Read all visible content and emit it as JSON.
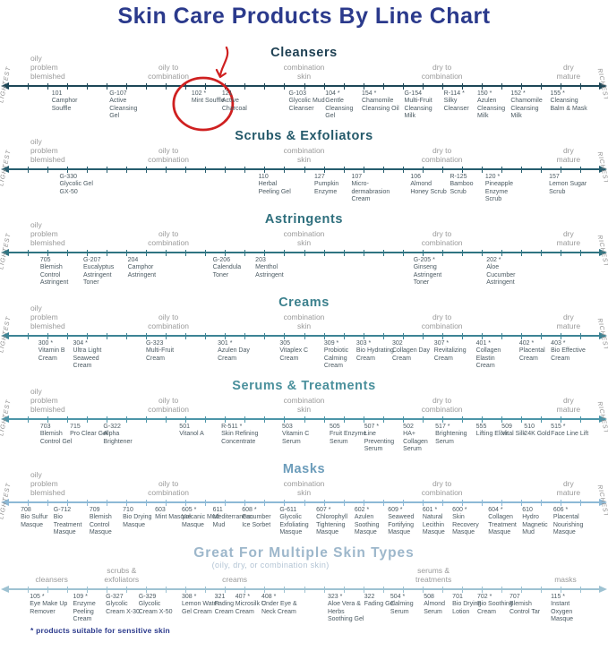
{
  "title": "Skin Care Products By Line Chart",
  "footer_note": "* products suitable for sensitive skin",
  "colors": {
    "title": "#2b3a8c",
    "footer": "#2b3a8c",
    "product_text": "#4b5a62",
    "zone_label_text": "#9a9a9a",
    "side_label_text": "#8e8e8e",
    "subtitle_text": "#b3c4d4",
    "annotation": "#cf2020"
  },
  "side_labels": {
    "left": "LIGHTEST",
    "right": "RICHEST"
  },
  "zone_label_sets": {
    "skin": [
      {
        "text": "oily\nproblem\nblemished",
        "x": 5,
        "align": "left"
      },
      {
        "text": "oily to\ncombination",
        "x": 27.7,
        "align": "center"
      },
      {
        "text": "combination\nskin",
        "x": 50,
        "align": "center"
      },
      {
        "text": "dry to\ncombination",
        "x": 72.7,
        "align": "center"
      },
      {
        "text": "dry\nmature",
        "x": 93.5,
        "align": "center"
      }
    ],
    "categories": [
      {
        "text": "cleansers",
        "x": 8.5,
        "align": "center"
      },
      {
        "text": "scrubs &\nexfoliators",
        "x": 20,
        "align": "center"
      },
      {
        "text": "creams",
        "x": 38.6,
        "align": "center"
      },
      {
        "text": "serums &\ntreatments",
        "x": 71.3,
        "align": "center"
      },
      {
        "text": "masks",
        "x": 93,
        "align": "center"
      }
    ]
  },
  "chart_data": {
    "type": "scatter",
    "x_axis": {
      "label_left": "LIGHTEST",
      "label_right": "RICHEST",
      "range": [
        0,
        100
      ],
      "description": "position along each product line from lightest to richest; zones: oily problem blemished / oily to combination / combination skin / dry to combination / dry mature"
    },
    "legend_note": "* products suitable for sensitive skin",
    "series": [
      {
        "name": "Cleansers",
        "zones": "skin",
        "header_color": "#1d3f52",
        "axis_color": "#1d4757",
        "points": [
          {
            "x": 8.5,
            "code": "101",
            "name": "Camphor Souffle"
          },
          {
            "x": 18,
            "code": "G-107",
            "name": "Active Cleansing Gel"
          },
          {
            "x": 31.5,
            "code": "102 *",
            "name": "Mint Souffle",
            "highlighted": true
          },
          {
            "x": 36.5,
            "code": "121",
            "name": "Active Charcoal"
          },
          {
            "x": 47.5,
            "code": "G-103",
            "name": "Glycolic Mud Cleanser"
          },
          {
            "x": 53.5,
            "code": "104 *",
            "name": "Gentle Cleansing Gel"
          },
          {
            "x": 59.5,
            "code": "154 *",
            "name": "Chamomile Cleansing Oil"
          },
          {
            "x": 66.5,
            "code": "G-154",
            "name": "Multi-Fruit Cleansing Milk"
          },
          {
            "x": 73,
            "code": "R-114 *",
            "name": "Silky Cleanser"
          },
          {
            "x": 78.5,
            "code": "150 *",
            "name": "Azulen Cleansing Milk"
          },
          {
            "x": 84,
            "code": "152 *",
            "name": "Chamomile Cleansing Milk"
          },
          {
            "x": 90.5,
            "code": "155 *",
            "name": "Cleansing Balm & Mask"
          }
        ]
      },
      {
        "name": "Scrubs & Exfoliators",
        "zones": "skin",
        "header_color": "#24596a",
        "axis_color": "#265d6e",
        "points": [
          {
            "x": 9.8,
            "code": "G-330",
            "name": "Glycolic Gel GX-50"
          },
          {
            "x": 42.5,
            "code": "110",
            "name": "Herbal Peeling Gel"
          },
          {
            "x": 51.7,
            "code": "127",
            "name": "Pumpkin Enzyme"
          },
          {
            "x": 57.8,
            "code": "107",
            "name": "Micro-dermabrasion Cream"
          },
          {
            "x": 67.5,
            "code": "106",
            "name": "Almond Honey Scrub"
          },
          {
            "x": 74,
            "code": "R-125",
            "name": "Bamboo Scrub"
          },
          {
            "x": 79.8,
            "code": "120 *",
            "name": "Pineapple Enzyme Scrub"
          },
          {
            "x": 90.3,
            "code": "157",
            "name": "Lemon Sugar Scrub"
          }
        ]
      },
      {
        "name": "Astringents",
        "zones": "skin",
        "header_color": "#2e6f7d",
        "axis_color": "#2f7482",
        "points": [
          {
            "x": 6.6,
            "code": "705",
            "name": "Blemish Control Astringent"
          },
          {
            "x": 13.7,
            "code": "G-207",
            "name": "Eucalyptus Astringent Toner"
          },
          {
            "x": 21,
            "code": "204",
            "name": "Camphor Astringent"
          },
          {
            "x": 35,
            "code": "G-206",
            "name": "Calendula Toner"
          },
          {
            "x": 42,
            "code": "203",
            "name": "Menthol Astringent"
          },
          {
            "x": 68,
            "code": "G-205 *",
            "name": "Ginseng Astringent Toner"
          },
          {
            "x": 80,
            "code": "202 *",
            "name": "Aloe Cucumber Astringent"
          }
        ]
      },
      {
        "name": "Creams",
        "zones": "skin",
        "header_color": "#3b808d",
        "axis_color": "#3d8495",
        "points": [
          {
            "x": 6.3,
            "code": "300 *",
            "name": "Vitamin B Cream"
          },
          {
            "x": 12,
            "code": "304 *",
            "name": "Ultra Light Seaweed Cream"
          },
          {
            "x": 24,
            "code": "G-323",
            "name": "Multi-Fruit Cream"
          },
          {
            "x": 35.8,
            "code": "301 *",
            "name": "Azulen Day Cream"
          },
          {
            "x": 46,
            "code": "305",
            "name": "Vitaplex C Cream"
          },
          {
            "x": 53.3,
            "code": "309 *",
            "name": "Probiotic Calming Cream"
          },
          {
            "x": 58.6,
            "code": "303 *",
            "name": "Bio Hydrating Cream"
          },
          {
            "x": 64.5,
            "code": "302",
            "name": "Collagen Day Cream"
          },
          {
            "x": 71.4,
            "code": "307 *",
            "name": "Revitalizing Cream"
          },
          {
            "x": 78.3,
            "code": "401 *",
            "name": "Collagen Elastin Cream"
          },
          {
            "x": 85.4,
            "code": "402 *",
            "name": "Placental Cream"
          },
          {
            "x": 90.6,
            "code": "403 *",
            "name": "Bio Effective Cream"
          }
        ]
      },
      {
        "name": "Serums & Treatments",
        "zones": "skin",
        "header_color": "#4a909c",
        "axis_color": "#4c95a8",
        "points": [
          {
            "x": 6.6,
            "code": "703",
            "name": "Blemish Control Gel"
          },
          {
            "x": 11.5,
            "code": "715",
            "name": "Pro Clear Gel"
          },
          {
            "x": 17,
            "code": "G-322",
            "name": "Alpha Brightener"
          },
          {
            "x": 29.5,
            "code": "501",
            "name": "Vitanol A"
          },
          {
            "x": 36.4,
            "code": "R-511 *",
            "name": "Skin Refining Concentrate"
          },
          {
            "x": 46.4,
            "code": "503",
            "name": "Vitamin C Serum"
          },
          {
            "x": 54.2,
            "code": "505",
            "name": "Fruit Enzyme Serum"
          },
          {
            "x": 59.9,
            "code": "507 *",
            "name": "Line Preventing Serum"
          },
          {
            "x": 66.3,
            "code": "502",
            "name": "HA+ Collagen Serum"
          },
          {
            "x": 71.6,
            "code": "517 *",
            "name": "Brightening Serum"
          },
          {
            "x": 78.3,
            "code": "555",
            "name": "Lifting Elixir"
          },
          {
            "x": 82.5,
            "code": "509",
            "name": "Vital Silk"
          },
          {
            "x": 86.2,
            "code": "510",
            "name": "24K Gold"
          },
          {
            "x": 90.6,
            "code": "515 *",
            "name": "Face Line Lift"
          }
        ]
      },
      {
        "name": "Masks",
        "zones": "skin",
        "header_color": "#6b9cba",
        "axis_color": "#8db9d6",
        "points": [
          {
            "x": 3.4,
            "code": "708",
            "name": "Bio Sulfur Masque"
          },
          {
            "x": 8.8,
            "code": "G-712",
            "name": "Bio Treatment Masque"
          },
          {
            "x": 14.7,
            "code": "709",
            "name": "Blemish Control Masque"
          },
          {
            "x": 20.2,
            "code": "710",
            "name": "Bio Drying Masque"
          },
          {
            "x": 25.5,
            "code": "603",
            "name": "Mint Masque"
          },
          {
            "x": 29.9,
            "code": "605 *",
            "name": "Volcanic Mud Masque"
          },
          {
            "x": 35,
            "code": "611",
            "name": "Mediterranean Mud"
          },
          {
            "x": 39.8,
            "code": "608 *",
            "name": "Cucumber Ice Sorbet"
          },
          {
            "x": 46,
            "code": "G-611",
            "name": "Glycolic Exfoliating Masque"
          },
          {
            "x": 52,
            "code": "607 *",
            "name": "Chlorophyll Tightening Masque"
          },
          {
            "x": 58.3,
            "code": "602 *",
            "name": "Azulen Soothing Masque"
          },
          {
            "x": 63.8,
            "code": "609 *",
            "name": "Seaweed Fortifying Masque"
          },
          {
            "x": 69.5,
            "code": "601 *",
            "name": "Natural Lecithin Masque"
          },
          {
            "x": 74.4,
            "code": "600 *",
            "name": "Skin Recovery Masque"
          },
          {
            "x": 80.3,
            "code": "604 *",
            "name": "Collagen Treatment Masque"
          },
          {
            "x": 85.9,
            "code": "610",
            "name": "Hydro Magnetic Mud"
          },
          {
            "x": 91,
            "code": "606 *",
            "name": "Placental Nourishing Masque"
          }
        ]
      },
      {
        "name": "Great For Multiple Skin Types",
        "subtitle": "(oily, dry, or combination skin)",
        "zones": "categories",
        "side_labels": false,
        "header_color": "#9db7cb",
        "axis_color": "#9ec2d2",
        "points": [
          {
            "x": 4.9,
            "code": "105 *",
            "name": "Eye Make Up Remover"
          },
          {
            "x": 12,
            "code": "109 *",
            "name": "Enzyme Peeling Cream"
          },
          {
            "x": 17.4,
            "code": "G-327",
            "name": "Glycolic Cream X-30"
          },
          {
            "x": 22.8,
            "code": "G-329",
            "name": "Glycolic Cream X-50"
          },
          {
            "x": 29.9,
            "code": "308 *",
            "name": "Lemon Water Gel Cream"
          },
          {
            "x": 35.3,
            "code": "321",
            "name": "Fading Cream"
          },
          {
            "x": 38.7,
            "code": "407 *",
            "name": "Microsilk C Cream"
          },
          {
            "x": 43,
            "code": "408 *",
            "name": "Under Eye & Neck Cream"
          },
          {
            "x": 53.9,
            "code": "323 *",
            "name": "Aloe Vera & Herbs Soothing Gel"
          },
          {
            "x": 59.9,
            "code": "322",
            "name": "Fading Gel"
          },
          {
            "x": 64.2,
            "code": "504 *",
            "name": "Calming Serum"
          },
          {
            "x": 69.7,
            "code": "508",
            "name": "Almond Serum"
          },
          {
            "x": 74.4,
            "code": "701",
            "name": "Bio Drying Lotion"
          },
          {
            "x": 78.5,
            "code": "702 *",
            "name": "Bio Soothing Cream"
          },
          {
            "x": 83.8,
            "code": "707",
            "name": "Blemish Control Tar"
          },
          {
            "x": 90.6,
            "code": "115 *",
            "name": "Instant Oxygen Masque"
          }
        ]
      }
    ]
  }
}
